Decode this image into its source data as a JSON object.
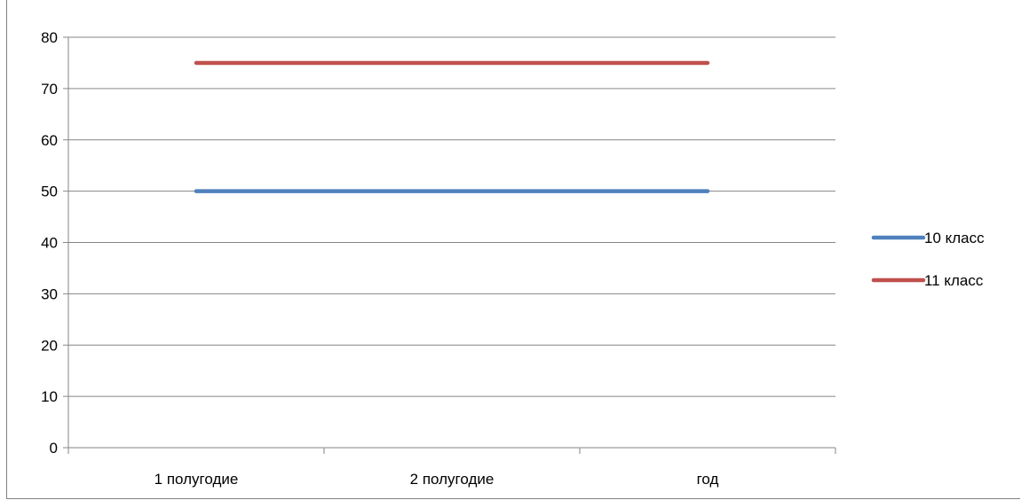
{
  "chart_data": {
    "type": "line",
    "categories": [
      "1 полугодие",
      "2 полугодие",
      "год"
    ],
    "series": [
      {
        "name": "10 класс",
        "values": [
          50,
          50,
          50
        ],
        "color": "#4f81bd"
      },
      {
        "name": "11 класс",
        "values": [
          75,
          75,
          75
        ],
        "color": "#c0504d"
      }
    ],
    "ylim": [
      0,
      80
    ],
    "yticks": [
      0,
      10,
      20,
      30,
      40,
      50,
      60,
      70,
      80
    ],
    "grid": true,
    "legend": "right",
    "gridline_color": "#868686",
    "axis_color": "#868686"
  }
}
